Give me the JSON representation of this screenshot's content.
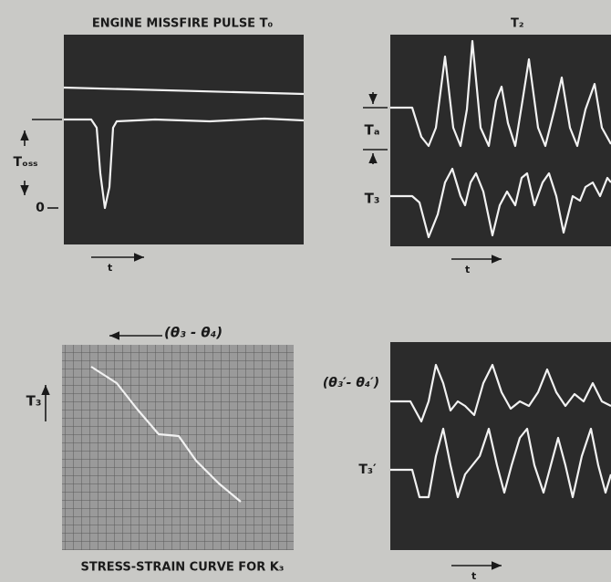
{
  "top_left": {
    "title": "ENGINE MISSFIRE PULSE T₀",
    "y_label": "Tₒₛₛ",
    "zero": "0",
    "x_label": "t"
  },
  "top_right": {
    "title": "T₂",
    "label_a": "Tₐ",
    "label_b": "T₃",
    "x_label": "t"
  },
  "bottom_left": {
    "x_label": "(θ₃ - θ₄)",
    "y_label": "T₃",
    "caption": "STRESS-STRAIN CURVE FOR K₃"
  },
  "bottom_right": {
    "label_a": "(θ₃′- θ₄′)",
    "label_b": "T₃′",
    "x_label": "t"
  }
}
